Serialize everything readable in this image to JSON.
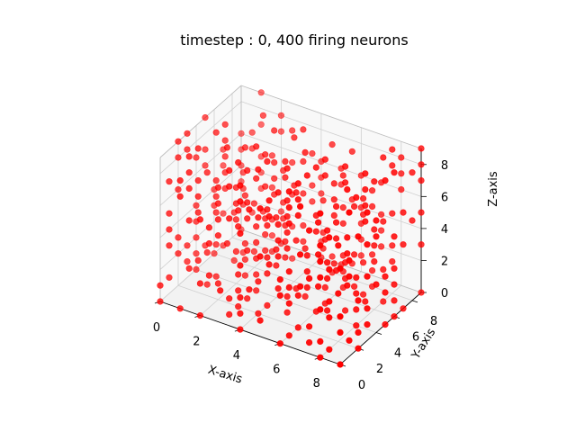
{
  "chart_data": {
    "type": "scatter3d",
    "title": "timestep : 0, 400 firing neurons",
    "xlabel": "X-axis",
    "ylabel": "Y-axis",
    "zlabel": "Z-axis",
    "xlim": [
      0,
      9
    ],
    "ylim": [
      0,
      9
    ],
    "zlim": [
      0,
      9
    ],
    "x_ticks": [
      "0",
      "2",
      "4",
      "6",
      "8"
    ],
    "y_ticks": [
      "0",
      "2",
      "4",
      "6",
      "8"
    ],
    "z_ticks": [
      "0",
      "2",
      "4",
      "6",
      "8"
    ],
    "grid": true,
    "point_color": "#ff0000",
    "grid_points_per_axis": 10,
    "neuron_count": 400
  }
}
